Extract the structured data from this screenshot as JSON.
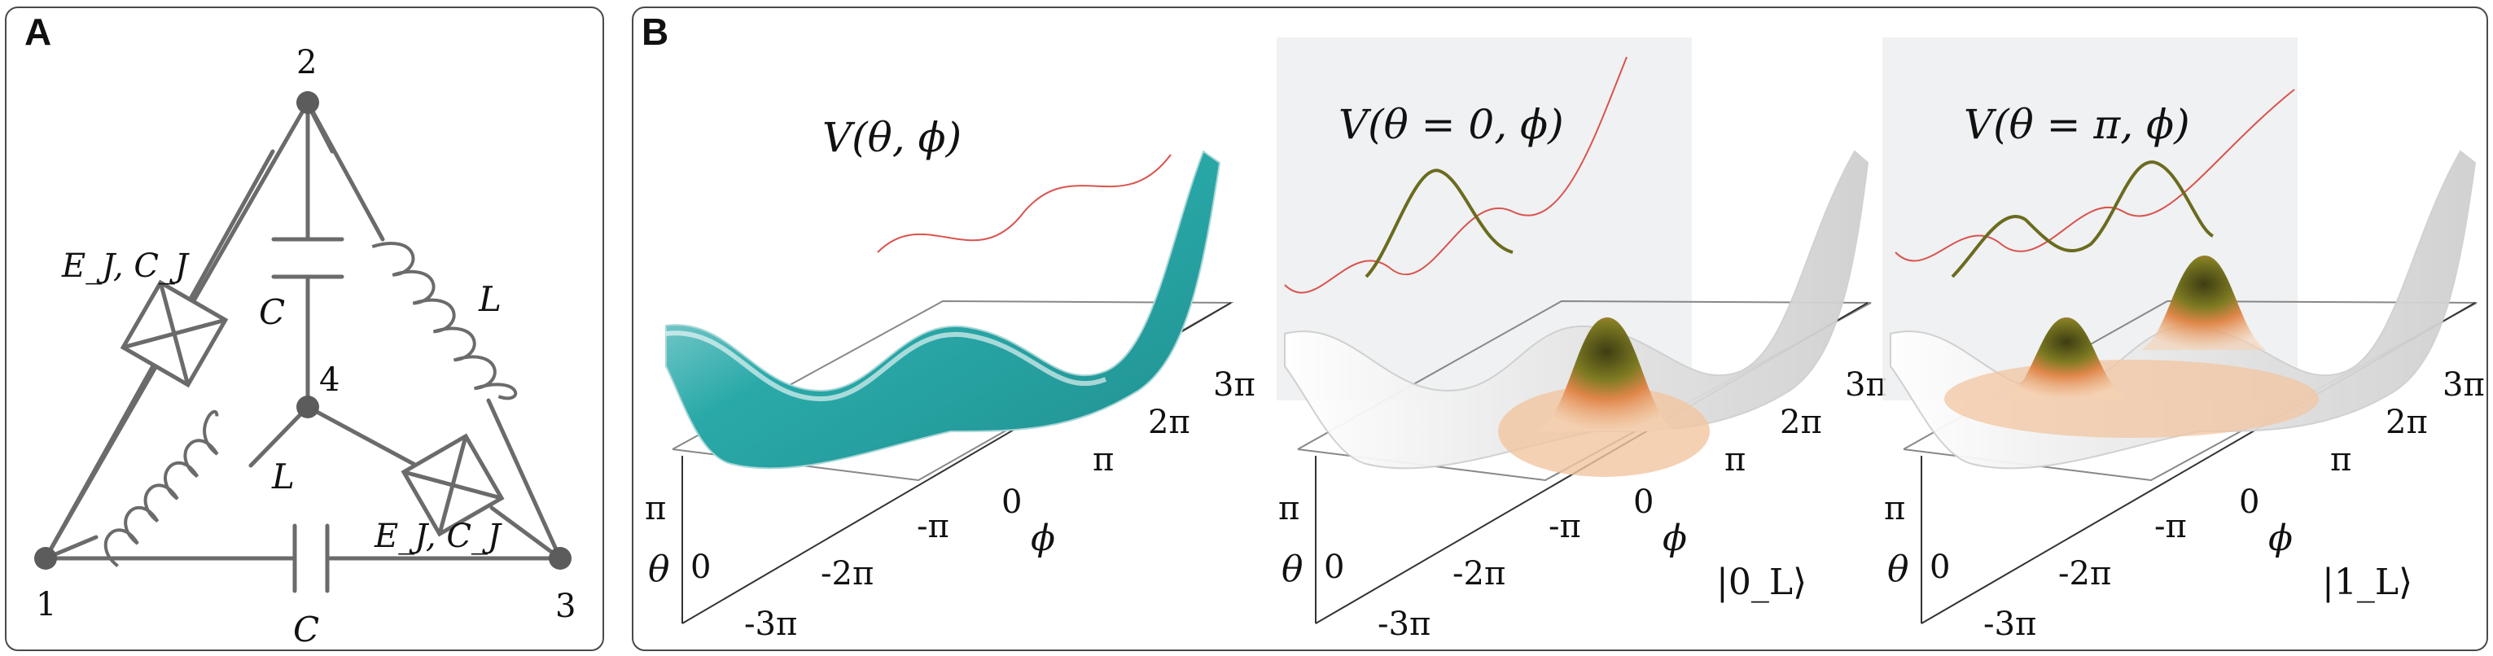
{
  "panels": {
    "a": {
      "label": "A",
      "nodes": [
        "1",
        "2",
        "3",
        "4"
      ],
      "junction_labels": [
        "E_J, C_J",
        "E_J, C_J"
      ],
      "capacitor_labels": [
        "C",
        "C"
      ],
      "inductor_labels": [
        "L",
        "L"
      ]
    },
    "b": {
      "label": "B",
      "plots": [
        {
          "title": "V(θ, ϕ)",
          "theta_axis": {
            "label": "θ",
            "ticks": [
              "π",
              "0"
            ]
          },
          "phi_axis": {
            "label": "ϕ",
            "ticks": [
              "-3π",
              "-2π",
              "-π",
              "0",
              "π",
              "2π",
              "3π"
            ]
          },
          "ket": "",
          "surface_color": "#2aa9a9"
        },
        {
          "title": "V(θ = 0, ϕ)",
          "theta_axis": {
            "label": "θ",
            "ticks": [
              "π",
              "0"
            ]
          },
          "phi_axis": {
            "label": "ϕ",
            "ticks": [
              "-3π",
              "-2π",
              "-π",
              "0",
              "π",
              "2π",
              "3π"
            ]
          },
          "ket": "|0_L⟩",
          "surface_color": "#e8e8e8"
        },
        {
          "title": "V(θ = π, ϕ)",
          "theta_axis": {
            "label": "θ",
            "ticks": [
              "π",
              "0"
            ]
          },
          "phi_axis": {
            "label": "ϕ",
            "ticks": [
              "-3π",
              "-2π",
              "-π",
              "0",
              "π",
              "2π",
              "3π"
            ]
          },
          "ket": "|1_L⟩",
          "surface_color": "#e8e8e8"
        }
      ]
    }
  },
  "colors": {
    "teal": "#2aa9a9",
    "potential_line": "#d9534f",
    "wavefunction_line": "#6b6b1f",
    "peak_dark": "#3d3d12",
    "peak_orange": "#e0874a",
    "wire": "#6b6b6b"
  }
}
